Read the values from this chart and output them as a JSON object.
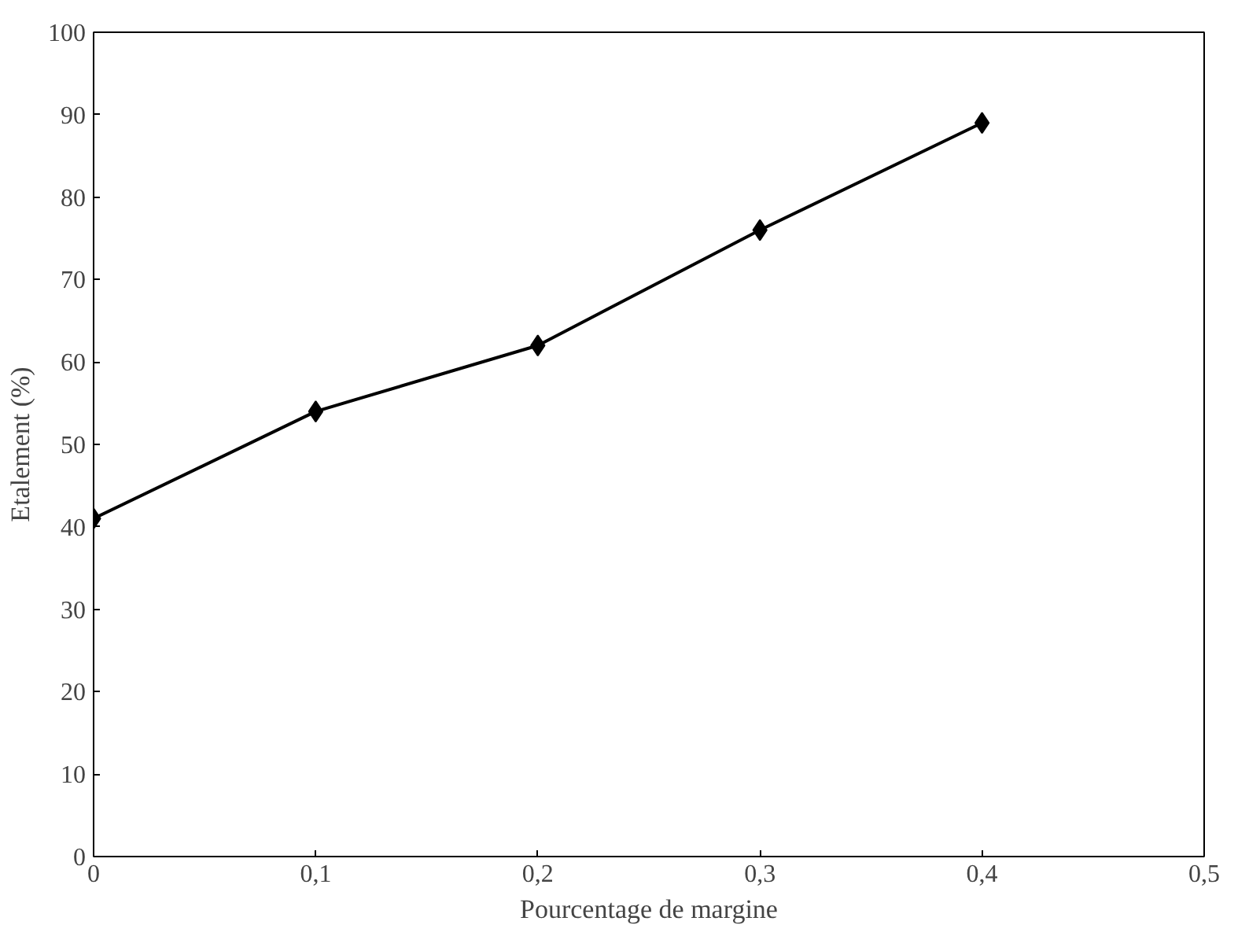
{
  "chart_data": {
    "type": "line",
    "xlabel": "Pourcentage de margine",
    "ylabel": "Etalement (%)",
    "x": [
      0,
      0.1,
      0.2,
      0.3,
      0.4
    ],
    "series": [
      {
        "color": "#000000",
        "values": [
          41,
          54,
          62,
          76,
          89
        ]
      }
    ],
    "xlim": [
      0,
      0.5
    ],
    "xticks": [
      0,
      {
        "value": 0.1,
        "label": "0,1"
      },
      {
        "value": 0.2,
        "label": "0,2"
      },
      {
        "value": 0.3,
        "label": "0,3"
      },
      {
        "value": 0.4,
        "label": "0,4"
      },
      {
        "value": 0.5,
        "label": "0,5"
      }
    ],
    "ylim": [
      0,
      100
    ],
    "yticks": [
      0,
      10,
      20,
      30,
      40,
      50,
      60,
      70,
      80,
      90,
      100
    ],
    "grid": false,
    "marker": "diamond",
    "line_style": "solid"
  }
}
